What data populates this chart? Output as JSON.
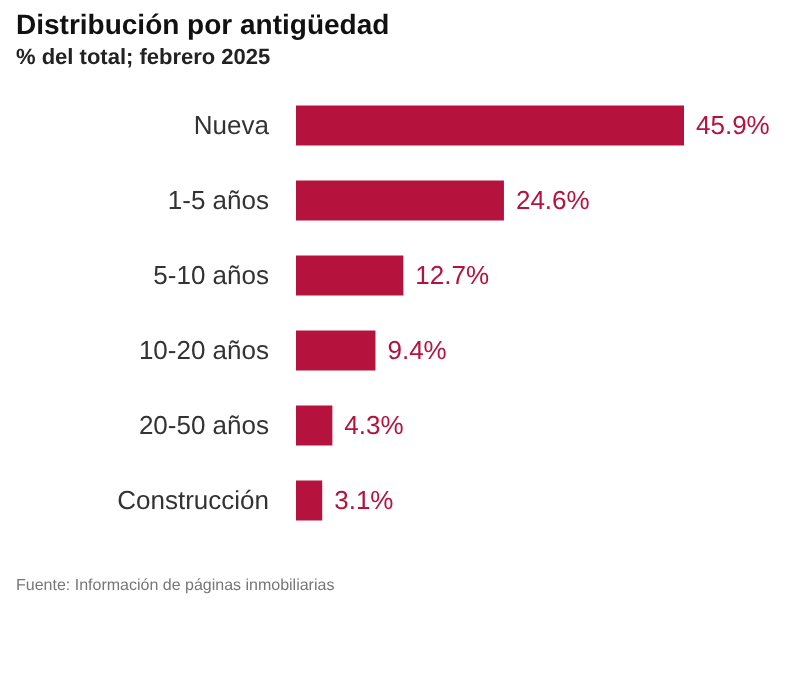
{
  "chart_data": {
    "type": "bar",
    "orientation": "horizontal",
    "title": "Distribución por antigüedad",
    "subtitle": "% del total; febrero 2025",
    "categories": [
      "Nueva",
      "1-5 años",
      "5-10 años",
      "10-20 años",
      "20-50 años",
      "Construcción"
    ],
    "values": [
      45.9,
      24.6,
      12.7,
      9.4,
      4.3,
      3.1
    ],
    "value_labels": [
      "45.9%",
      "24.6%",
      "12.7%",
      "9.4%",
      "4.3%",
      "3.1%"
    ],
    "color": "#b5123e",
    "annotations": [
      "Fuente: Información de páginas inmobiliarias"
    ]
  }
}
